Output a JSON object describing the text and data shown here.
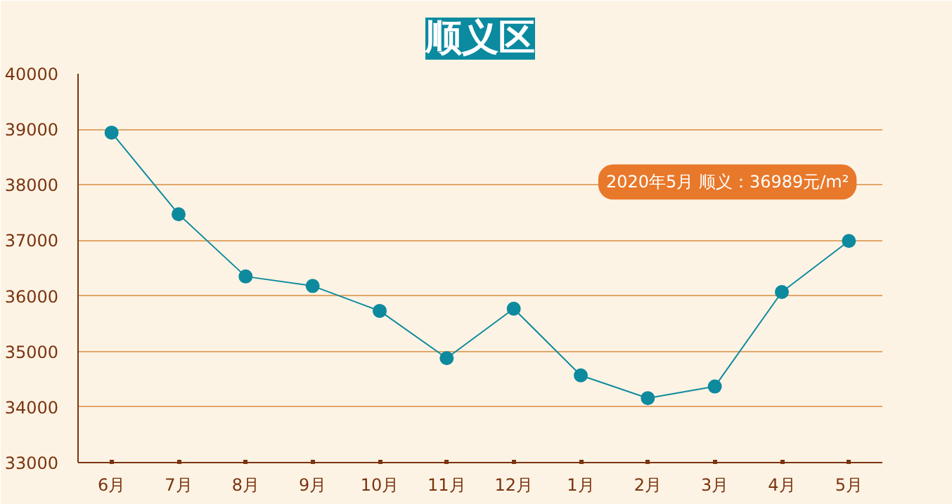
{
  "chart_data": {
    "type": "line",
    "title": "顺义区",
    "categories": [
      "6月",
      "7月",
      "8月",
      "9月",
      "10月",
      "11月",
      "12月",
      "1月",
      "2月",
      "3月",
      "4月",
      "5月"
    ],
    "series": [
      {
        "color": "#0e8a9e",
        "values": [
          38940,
          37470,
          36350,
          36180,
          35730,
          34880,
          35770,
          34570,
          34160,
          34370,
          36070,
          36989
        ]
      }
    ],
    "ylim": [
      33000,
      40000
    ],
    "yticks": [
      33000,
      34000,
      35000,
      36000,
      37000,
      38000,
      39000,
      40000
    ],
    "grid": "y",
    "marker": "circle",
    "line_style": "solid",
    "annotations": [
      {
        "text": "2020年5月 顺义：36989元/m²",
        "x": "5月",
        "y": 36989
      }
    ]
  }
}
